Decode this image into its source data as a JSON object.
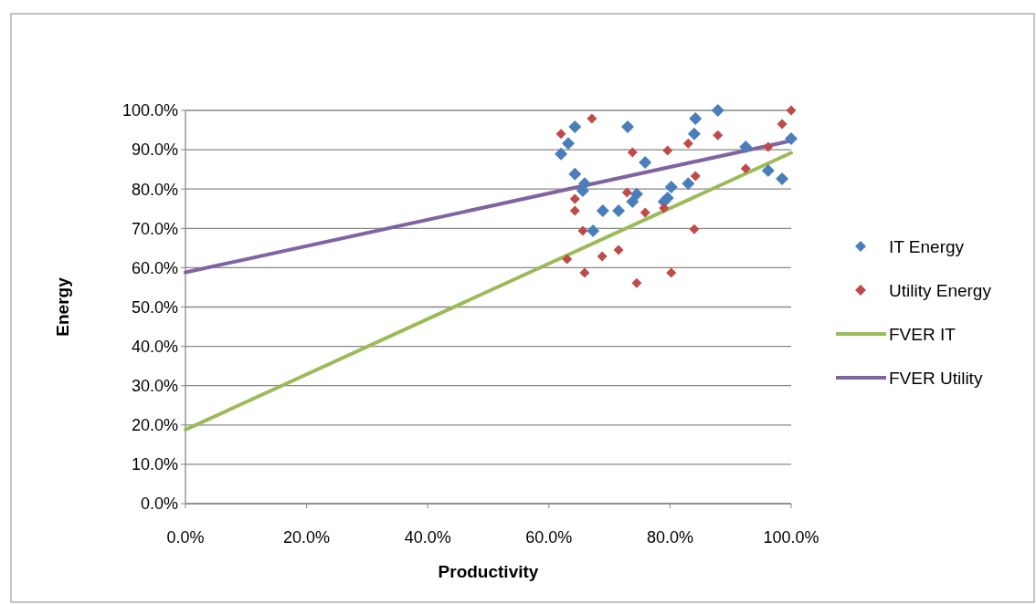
{
  "chart_data": {
    "type": "scatter",
    "xlabel": "Productivity",
    "ylabel": "Energy",
    "grid": "y",
    "legend": "right",
    "xlim": [
      0,
      100
    ],
    "ylim": [
      0,
      100
    ],
    "xticks": [
      {
        "value": 0,
        "label": "0.0%"
      },
      {
        "value": 20,
        "label": "20.0%"
      },
      {
        "value": 40,
        "label": "40.0%"
      },
      {
        "value": 60,
        "label": "60.0%"
      },
      {
        "value": 80,
        "label": "80.0%"
      },
      {
        "value": 100,
        "label": "100.0%"
      }
    ],
    "yticks": [
      {
        "value": 0,
        "label": "0.0%"
      },
      {
        "value": 10,
        "label": "10.0%"
      },
      {
        "value": 20,
        "label": "20.0%"
      },
      {
        "value": 30,
        "label": "30.0%"
      },
      {
        "value": 40,
        "label": "40.0%"
      },
      {
        "value": 50,
        "label": "50.0%"
      },
      {
        "value": 60,
        "label": "60.0%"
      },
      {
        "value": 70,
        "label": "70.0%"
      },
      {
        "value": 80,
        "label": "80.0%"
      },
      {
        "value": 90,
        "label": "90.0%"
      },
      {
        "value": 100,
        "label": "100.0%"
      }
    ],
    "series": [
      {
        "name": "IT Energy",
        "marker": "diamond",
        "color": "#4a7ebb",
        "x": [
          62,
          63.2,
          64.3,
          64.3,
          65.9,
          65.6,
          67.3,
          68.9,
          71.5,
          73,
          73.8,
          74.5,
          75.9,
          79,
          79.6,
          80.2,
          83,
          84,
          84.2,
          87.9,
          92.5,
          96.2,
          98.5,
          100
        ],
        "values": [
          88.9,
          91.6,
          95.8,
          83.8,
          81.4,
          79.6,
          69.4,
          74.5,
          74.5,
          95.8,
          76.8,
          78.7,
          86.8,
          76.8,
          77.7,
          80.5,
          81.4,
          94,
          97.9,
          100,
          90.7,
          84.7,
          82.6,
          92.8
        ]
      },
      {
        "name": "Utility Energy",
        "marker": "diamond",
        "color": "#be4b48",
        "x": [
          62,
          63,
          64.3,
          64.3,
          65.6,
          65.9,
          67.1,
          68.8,
          71.5,
          72.9,
          73.8,
          74.5,
          75.9,
          79,
          79.6,
          80.2,
          83,
          84.2,
          84,
          87.9,
          92.5,
          96.2,
          98.5,
          100
        ],
        "values": [
          94,
          62.2,
          77.5,
          74.5,
          69.4,
          58.7,
          97.9,
          62.9,
          64.5,
          79.1,
          89.3,
          56.1,
          74,
          75.2,
          89.8,
          58.7,
          91.6,
          83.3,
          69.8,
          93.7,
          85.2,
          90.7,
          96.5,
          100
        ]
      },
      {
        "name": "FVER IT",
        "type": "line",
        "color": "#9bbb59",
        "x": [
          0,
          100
        ],
        "values": [
          18.8,
          89.2
        ]
      },
      {
        "name": "FVER Utility",
        "type": "line",
        "color": "#8064a2",
        "x": [
          0,
          100
        ],
        "values": [
          58.8,
          92.3
        ]
      }
    ]
  }
}
